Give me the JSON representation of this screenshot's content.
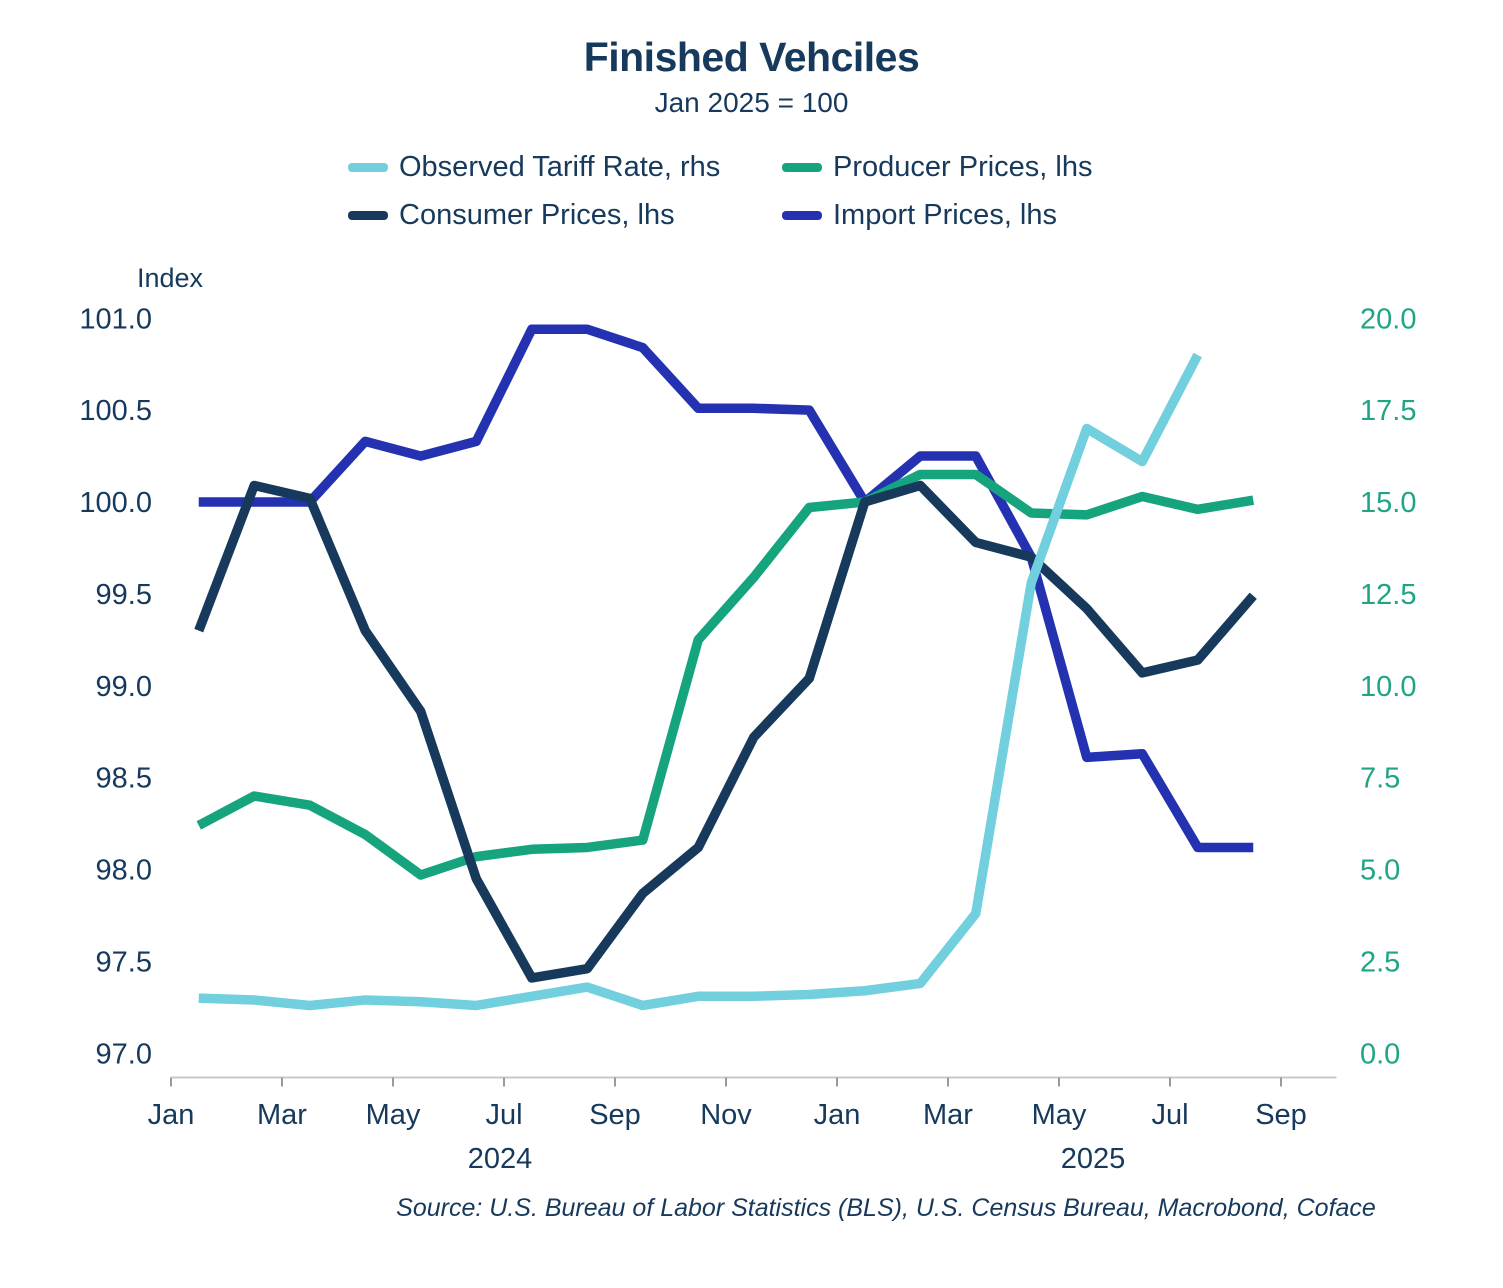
{
  "title": "Finished Vehciles",
  "subtitle": "Jan 2025 = 100",
  "source": "Source: U.S. Bureau of Labor Statistics (BLS), U.S. Census Bureau, Macrobond, Coface",
  "colors": {
    "text_navy": "#16395C",
    "axis_line": "#c9c9c9",
    "tick_mark": "#9a9a9a",
    "right_axis_text": "#1FA485"
  },
  "left_axis": {
    "title": "Index",
    "tick_labels": [
      "101.0",
      "100.5",
      "100.0",
      "99.5",
      "99.0",
      "98.5",
      "98.0",
      "97.5",
      "97.0"
    ]
  },
  "right_axis": {
    "tick_labels": [
      "20.0",
      "17.5",
      "15.0",
      "12.5",
      "10.0",
      "7.5",
      "5.0",
      "2.5",
      "0.0"
    ]
  },
  "x_axis": {
    "tick_labels": [
      "Jan",
      "Mar",
      "May",
      "Jul",
      "Sep",
      "Nov",
      "Jan",
      "Mar",
      "May",
      "Jul",
      "Sep"
    ],
    "year_labels": [
      "2024",
      "2025"
    ]
  },
  "chart_data": {
    "type": "line",
    "title": "Finished Vehciles",
    "subtitle": "Jan 2025 = 100",
    "x": [
      "Jan 2024",
      "Feb 2024",
      "Mar 2024",
      "Apr 2024",
      "May 2024",
      "Jun 2024",
      "Jul 2024",
      "Aug 2024",
      "Sep 2024",
      "Oct 2024",
      "Nov 2024",
      "Dec 2024",
      "Jan 2025",
      "Feb 2025",
      "Mar 2025",
      "Apr 2025",
      "May 2025",
      "Jun 2025",
      "Jul 2025",
      "Aug 2025",
      "Sep 2025"
    ],
    "left_ylim": [
      97.0,
      101.0
    ],
    "right_ylim": [
      0.0,
      20.0
    ],
    "grid": false,
    "legend_position": "top",
    "series": [
      {
        "name": "Observed Tariff Rate, rhs",
        "axis": "right",
        "color": "#72CFDD",
        "values": [
          1.5,
          1.45,
          1.3,
          1.45,
          1.4,
          1.3,
          1.55,
          1.8,
          1.3,
          1.55,
          1.55,
          1.6,
          1.7,
          1.9,
          3.8,
          12.8,
          17.0,
          16.1,
          19.0
        ]
      },
      {
        "name": "Producer Prices, lhs",
        "axis": "left",
        "color": "#16A47F",
        "values": [
          98.24,
          98.4,
          98.35,
          98.19,
          97.97,
          98.07,
          98.11,
          98.12,
          98.16,
          99.25,
          99.59,
          99.97,
          100.0,
          100.15,
          100.15,
          99.94,
          99.93,
          100.03,
          99.96,
          100.01
        ]
      },
      {
        "name": "Consumer Prices, lhs",
        "axis": "left",
        "color": "#16395C",
        "values": [
          99.3,
          100.09,
          100.02,
          99.3,
          98.86,
          97.95,
          97.41,
          97.46,
          97.87,
          98.12,
          98.72,
          99.04,
          100.0,
          100.09,
          99.78,
          99.7,
          99.42,
          99.07,
          99.14,
          99.49
        ]
      },
      {
        "name": "Import Prices, lhs",
        "axis": "left",
        "color": "#2432B2",
        "values": [
          100.0,
          100.0,
          100.0,
          100.33,
          100.25,
          100.33,
          100.94,
          100.94,
          100.84,
          100.51,
          100.51,
          100.5,
          100.0,
          100.25,
          100.25,
          99.7,
          98.61,
          98.63,
          98.12,
          98.12
        ]
      }
    ]
  }
}
